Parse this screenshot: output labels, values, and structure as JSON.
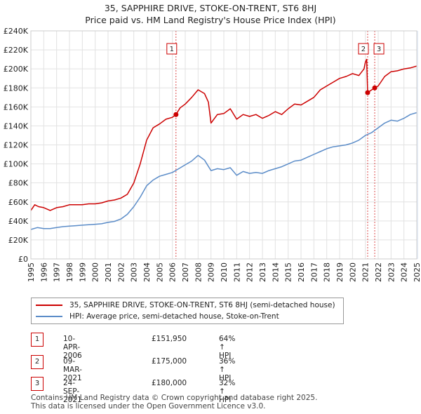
{
  "title_line1": "35, SAPPHIRE DRIVE, STOKE-ON-TRENT, ST6 8HJ",
  "title_line2": "Price paid vs. HM Land Registry's House Price Index (HPI)",
  "colors": {
    "property": "#cc0000",
    "hpi": "#5b8cc8",
    "sale_line": "#cc0000",
    "shade": "#e6edf8"
  },
  "chart_data": {
    "type": "line",
    "ylim": [
      0,
      240000
    ],
    "xlim": [
      1995,
      2025
    ],
    "y_ticks": [
      {
        "value": 0,
        "label": "£0"
      },
      {
        "value": 20000,
        "label": "£20K"
      },
      {
        "value": 40000,
        "label": "£40K"
      },
      {
        "value": 60000,
        "label": "£60K"
      },
      {
        "value": 80000,
        "label": "£80K"
      },
      {
        "value": 100000,
        "label": "£100K"
      },
      {
        "value": 120000,
        "label": "£120K"
      },
      {
        "value": 140000,
        "label": "£140K"
      },
      {
        "value": 160000,
        "label": "£160K"
      },
      {
        "value": 180000,
        "label": "£180K"
      },
      {
        "value": 200000,
        "label": "£200K"
      },
      {
        "value": 220000,
        "label": "£220K"
      },
      {
        "value": 240000,
        "label": "£240K"
      }
    ],
    "x_ticks": [
      "1995",
      "1996",
      "1997",
      "1998",
      "1999",
      "2000",
      "2001",
      "2002",
      "2003",
      "2004",
      "2005",
      "2006",
      "2007",
      "2008",
      "2009",
      "2010",
      "2011",
      "2012",
      "2013",
      "2014",
      "2015",
      "2016",
      "2017",
      "2018",
      "2019",
      "2020",
      "2021",
      "2022",
      "2023",
      "2024",
      "2025"
    ],
    "shaded_period": [
      2025.0,
      2025.3
    ],
    "series": [
      {
        "name": "35, SAPPHIRE DRIVE, STOKE-ON-TRENT, ST6 8HJ (semi-detached house)",
        "color": "#cc0000",
        "points": [
          [
            1995.0,
            51000
          ],
          [
            1995.3,
            57000
          ],
          [
            1995.6,
            55000
          ],
          [
            1996.0,
            54000
          ],
          [
            1996.5,
            51000
          ],
          [
            1997.0,
            54000
          ],
          [
            1997.5,
            55000
          ],
          [
            1998.0,
            57000
          ],
          [
            1998.5,
            57000
          ],
          [
            1999.0,
            57000
          ],
          [
            1999.5,
            58000
          ],
          [
            2000.0,
            58000
          ],
          [
            2000.5,
            59000
          ],
          [
            2001.0,
            61000
          ],
          [
            2001.5,
            62000
          ],
          [
            2002.0,
            64000
          ],
          [
            2002.5,
            68000
          ],
          [
            2003.0,
            80000
          ],
          [
            2003.5,
            100000
          ],
          [
            2004.0,
            125000
          ],
          [
            2004.5,
            138000
          ],
          [
            2005.0,
            142000
          ],
          [
            2005.5,
            147000
          ],
          [
            2006.0,
            149000
          ],
          [
            2006.28,
            151950
          ],
          [
            2006.6,
            159000
          ],
          [
            2007.0,
            163000
          ],
          [
            2007.5,
            170000
          ],
          [
            2008.0,
            178000
          ],
          [
            2008.5,
            174000
          ],
          [
            2008.8,
            165000
          ],
          [
            2009.0,
            143000
          ],
          [
            2009.5,
            152000
          ],
          [
            2010.0,
            153000
          ],
          [
            2010.5,
            158000
          ],
          [
            2011.0,
            147000
          ],
          [
            2011.5,
            152000
          ],
          [
            2012.0,
            150000
          ],
          [
            2012.5,
            152000
          ],
          [
            2013.0,
            148000
          ],
          [
            2013.5,
            151000
          ],
          [
            2014.0,
            155000
          ],
          [
            2014.5,
            152000
          ],
          [
            2015.0,
            158000
          ],
          [
            2015.5,
            163000
          ],
          [
            2016.0,
            162000
          ],
          [
            2016.5,
            166000
          ],
          [
            2017.0,
            170000
          ],
          [
            2017.5,
            178000
          ],
          [
            2018.0,
            182000
          ],
          [
            2018.5,
            186000
          ],
          [
            2019.0,
            190000
          ],
          [
            2019.5,
            192000
          ],
          [
            2020.0,
            195000
          ],
          [
            2020.5,
            193000
          ],
          [
            2020.9,
            200000
          ],
          [
            2021.0,
            207000
          ],
          [
            2021.1,
            210000
          ],
          [
            2021.18,
            175000
          ],
          [
            2021.5,
            178000
          ],
          [
            2021.73,
            180000
          ],
          [
            2022.0,
            182000
          ],
          [
            2022.5,
            192000
          ],
          [
            2023.0,
            197000
          ],
          [
            2023.5,
            198000
          ],
          [
            2024.0,
            200000
          ],
          [
            2024.5,
            201000
          ],
          [
            2025.0,
            203000
          ]
        ]
      },
      {
        "name": "HPI: Average price, semi-detached house, Stoke-on-Trent",
        "color": "#5b8cc8",
        "points": [
          [
            1995.0,
            31000
          ],
          [
            1995.5,
            33000
          ],
          [
            1996.0,
            32000
          ],
          [
            1996.5,
            32000
          ],
          [
            1997.0,
            33000
          ],
          [
            1997.5,
            34000
          ],
          [
            1998.0,
            34500
          ],
          [
            1998.5,
            35000
          ],
          [
            1999.0,
            35500
          ],
          [
            1999.5,
            36000
          ],
          [
            2000.0,
            36500
          ],
          [
            2000.5,
            37000
          ],
          [
            2001.0,
            38500
          ],
          [
            2001.5,
            39500
          ],
          [
            2002.0,
            42000
          ],
          [
            2002.5,
            47000
          ],
          [
            2003.0,
            55000
          ],
          [
            2003.5,
            65000
          ],
          [
            2004.0,
            77000
          ],
          [
            2004.5,
            83000
          ],
          [
            2005.0,
            87000
          ],
          [
            2005.5,
            89000
          ],
          [
            2006.0,
            91000
          ],
          [
            2006.5,
            95000
          ],
          [
            2007.0,
            99000
          ],
          [
            2007.5,
            103000
          ],
          [
            2008.0,
            109000
          ],
          [
            2008.5,
            104000
          ],
          [
            2009.0,
            93000
          ],
          [
            2009.5,
            95000
          ],
          [
            2010.0,
            94000
          ],
          [
            2010.5,
            96000
          ],
          [
            2011.0,
            88000
          ],
          [
            2011.5,
            92000
          ],
          [
            2012.0,
            90000
          ],
          [
            2012.5,
            91000
          ],
          [
            2013.0,
            90000
          ],
          [
            2013.5,
            93000
          ],
          [
            2014.0,
            95000
          ],
          [
            2014.5,
            97000
          ],
          [
            2015.0,
            100000
          ],
          [
            2015.5,
            103000
          ],
          [
            2016.0,
            104000
          ],
          [
            2016.5,
            107000
          ],
          [
            2017.0,
            110000
          ],
          [
            2017.5,
            113000
          ],
          [
            2018.0,
            116000
          ],
          [
            2018.5,
            118000
          ],
          [
            2019.0,
            119000
          ],
          [
            2019.5,
            120000
          ],
          [
            2020.0,
            122000
          ],
          [
            2020.5,
            125000
          ],
          [
            2021.0,
            130000
          ],
          [
            2021.5,
            133000
          ],
          [
            2022.0,
            138000
          ],
          [
            2022.5,
            143000
          ],
          [
            2023.0,
            146000
          ],
          [
            2023.5,
            145000
          ],
          [
            2024.0,
            148000
          ],
          [
            2024.5,
            152000
          ],
          [
            2025.0,
            154000
          ]
        ]
      }
    ],
    "sales": [
      {
        "label": "1",
        "x": 2006.28,
        "value": 151950,
        "show_dot": true
      },
      {
        "label": "2",
        "x": 2021.18,
        "value": 175000,
        "show_dot": true
      },
      {
        "label": "3",
        "x": 2021.73,
        "value": 180000,
        "show_dot": true
      }
    ]
  },
  "legend": {
    "property": "35, SAPPHIRE DRIVE, STOKE-ON-TRENT, ST6 8HJ (semi-detached house)",
    "hpi": "HPI: Average price, semi-detached house, Stoke-on-Trent"
  },
  "transactions": [
    {
      "num": "1",
      "date": "10-APR-2006",
      "price": "£151,950",
      "hpi": "64% ↑ HPI"
    },
    {
      "num": "2",
      "date": "09-MAR-2021",
      "price": "£175,000",
      "hpi": "36% ↑ HPI"
    },
    {
      "num": "3",
      "date": "24-SEP-2021",
      "price": "£180,000",
      "hpi": "32% ↑ HPI"
    }
  ],
  "footer": {
    "line1": "Contains HM Land Registry data © Crown copyright and database right 2025.",
    "line2": "This data is licensed under the Open Government Licence v3.0."
  }
}
